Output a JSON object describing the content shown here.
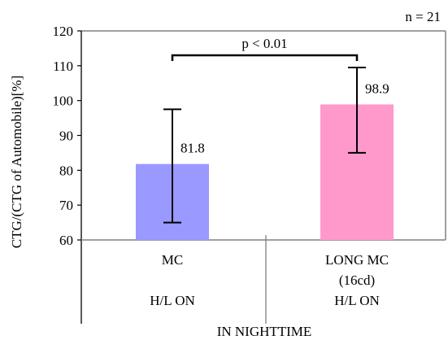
{
  "chart_data": {
    "type": "bar",
    "ylabel": "CTG/(CTG of Automobile)[%]",
    "ylim": [
      60,
      120
    ],
    "yticks": [
      60,
      70,
      80,
      90,
      100,
      110,
      120
    ],
    "grid": false,
    "sample_size": "n = 21",
    "categories": [
      {
        "label": "MC",
        "sublabel": "",
        "condition": "H/L ON"
      },
      {
        "label": "LONG MC",
        "sublabel": "(16cd)",
        "condition": "H/L ON"
      }
    ],
    "values": [
      81.8,
      98.9
    ],
    "value_labels": [
      "81.8",
      "98.9"
    ],
    "error_low": [
      65,
      85
    ],
    "error_high": [
      97.5,
      109.5
    ],
    "bar_colors": [
      "#9999ff",
      "#ff99cc"
    ],
    "group_label": "IN NIGHTTIME",
    "significance": {
      "text": "p < 0.01",
      "between": [
        0,
        1
      ]
    }
  }
}
